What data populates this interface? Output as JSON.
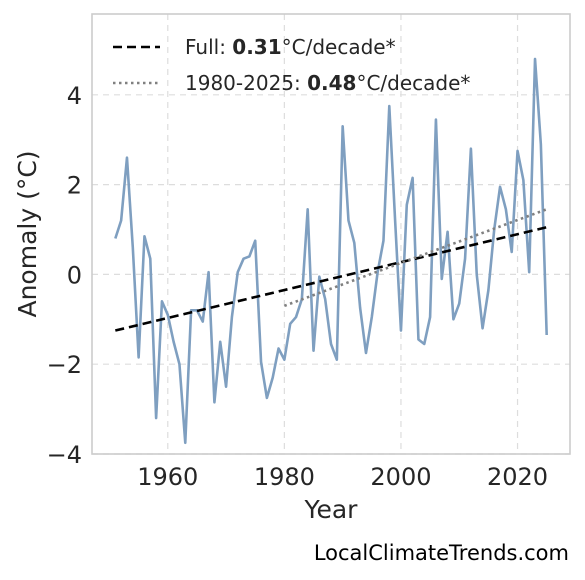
{
  "chart_data": {
    "type": "line",
    "title": "",
    "xlabel": "Year",
    "ylabel": "Anomaly (°C)",
    "xlim": [
      1947,
      2029
    ],
    "ylim": [
      -4,
      5.8
    ],
    "xticks": [
      1960,
      1980,
      2000,
      2020
    ],
    "yticks": [
      -4,
      -2,
      0,
      2,
      4
    ],
    "ytick_labels": [
      "−4",
      "−2",
      "0",
      "2",
      "4"
    ],
    "grid": true,
    "legend_position": "top-left",
    "colors": {
      "series": "#7f9fc0",
      "full_trend": "#000000",
      "recent_trend": "#808080",
      "grid": "#dddddd",
      "frame": "#cccccc"
    },
    "series": [
      {
        "values": [
          [
            1951,
            0.8
          ],
          [
            1952,
            1.2
          ],
          [
            1953,
            2.6
          ],
          [
            1954,
            0.6
          ],
          [
            1955,
            -1.85
          ],
          [
            1956,
            0.85
          ],
          [
            1957,
            0.35
          ],
          [
            1958,
            -3.2
          ],
          [
            1959,
            -0.6
          ],
          [
            1960,
            -0.9
          ],
          [
            1961,
            -1.5
          ],
          [
            1962,
            -2.0
          ],
          [
            1963,
            -3.75
          ],
          [
            1964,
            -0.8
          ],
          [
            1965,
            -0.8
          ],
          [
            1966,
            -1.05
          ],
          [
            1967,
            0.05
          ],
          [
            1968,
            -2.85
          ],
          [
            1969,
            -1.5
          ],
          [
            1970,
            -2.5
          ],
          [
            1971,
            -0.95
          ],
          [
            1972,
            0.05
          ],
          [
            1973,
            0.35
          ],
          [
            1974,
            0.4
          ],
          [
            1975,
            0.75
          ],
          [
            1976,
            -1.95
          ],
          [
            1977,
            -2.75
          ],
          [
            1978,
            -2.3
          ],
          [
            1979,
            -1.65
          ],
          [
            1980,
            -1.9
          ],
          [
            1981,
            -1.1
          ],
          [
            1982,
            -0.95
          ],
          [
            1983,
            -0.55
          ],
          [
            1984,
            1.45
          ],
          [
            1985,
            -1.7
          ],
          [
            1986,
            -0.05
          ],
          [
            1987,
            -0.55
          ],
          [
            1988,
            -1.55
          ],
          [
            1989,
            -1.9
          ],
          [
            1990,
            3.3
          ],
          [
            1991,
            1.2
          ],
          [
            1992,
            0.7
          ],
          [
            1993,
            -0.75
          ],
          [
            1994,
            -1.75
          ],
          [
            1995,
            -0.95
          ],
          [
            1996,
            0.05
          ],
          [
            1997,
            0.75
          ],
          [
            1998,
            3.75
          ],
          [
            1999,
            1.2
          ],
          [
            2000,
            -1.25
          ],
          [
            2001,
            1.55
          ],
          [
            2002,
            2.15
          ],
          [
            2003,
            -1.45
          ],
          [
            2004,
            -1.55
          ],
          [
            2005,
            -0.95
          ],
          [
            2006,
            3.45
          ],
          [
            2007,
            -0.1
          ],
          [
            2008,
            0.95
          ],
          [
            2009,
            -1.0
          ],
          [
            2010,
            -0.65
          ],
          [
            2011,
            0.35
          ],
          [
            2012,
            2.8
          ],
          [
            2013,
            0.0
          ],
          [
            2014,
            -1.2
          ],
          [
            2015,
            -0.35
          ],
          [
            2016,
            1.0
          ],
          [
            2017,
            1.95
          ],
          [
            2018,
            1.45
          ],
          [
            2019,
            0.5
          ],
          [
            2020,
            2.75
          ],
          [
            2021,
            2.1
          ],
          [
            2022,
            0.05
          ],
          [
            2023,
            4.8
          ],
          [
            2024,
            2.9
          ],
          [
            2025,
            -1.35
          ]
        ]
      }
    ],
    "trends": [
      {
        "key": "full",
        "label_prefix": "Full: ",
        "label_value": "0.31",
        "label_suffix": "°C/decade*",
        "style": "dashed",
        "x": [
          1951,
          2025
        ],
        "y": [
          -1.25,
          1.05
        ]
      },
      {
        "key": "recent",
        "label_prefix": "1980-2025: ",
        "label_value": "0.48",
        "label_suffix": "°C/decade*",
        "style": "dotted",
        "x": [
          1980,
          2025
        ],
        "y": [
          -0.7,
          1.45
        ]
      }
    ],
    "watermark": "LocalClimateTrends.com"
  }
}
